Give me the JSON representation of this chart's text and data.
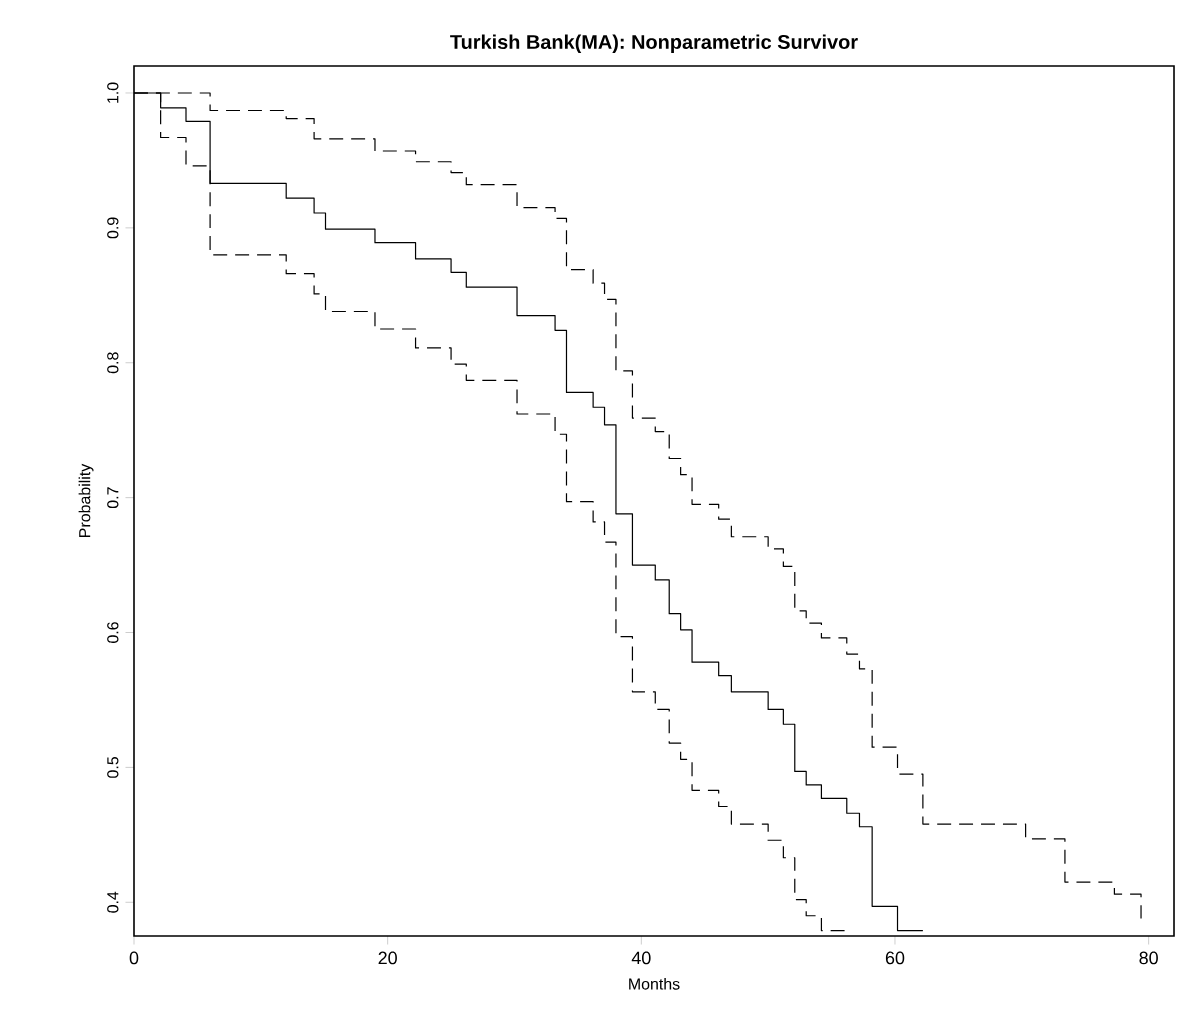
{
  "chart_data": {
    "type": "step",
    "title": "Turkish Bank(MA):  Nonparametric  Survivor",
    "xlabel": "Months",
    "ylabel": "Probability",
    "xlim": [
      0,
      82
    ],
    "ylim": [
      0.375,
      1.02
    ],
    "xticks": [
      0,
      20,
      40,
      60,
      80
    ],
    "yticks": [
      0.4,
      0.5,
      0.6,
      0.7,
      0.8,
      0.9,
      {
        "value": 1,
        "label": "1.0"
      }
    ],
    "series": [
      {
        "color": "#000000",
        "line_style": "solid",
        "x": [
          0,
          2.1,
          4.1,
          6.0,
          12.0,
          14.2,
          15.1,
          19.0,
          22.2,
          25.0,
          26.2,
          30.2,
          33.2,
          34.1,
          36.2,
          37.1,
          38.0,
          39.3,
          41.1,
          42.2,
          43.1,
          44.0,
          46.1,
          47.1,
          50.0,
          51.2,
          52.1,
          53.0,
          54.2,
          56.2,
          57.2,
          58.2,
          60.2,
          62.2
        ],
        "values": [
          1,
          0.989,
          0.979,
          0.933,
          0.922,
          0.911,
          0.899,
          0.889,
          0.877,
          0.867,
          0.856,
          0.835,
          0.824,
          0.778,
          0.767,
          0.754,
          0.688,
          0.65,
          0.639,
          0.614,
          0.602,
          0.578,
          0.568,
          0.556,
          0.543,
          0.532,
          0.497,
          0.487,
          0.477,
          0.466,
          0.456,
          0.397,
          0.379,
          0.379
        ]
      },
      {
        "color": "#000000",
        "line_style": "dashed",
        "x": [
          0,
          2.1,
          4.1,
          6.0,
          12.0,
          14.2,
          15.1,
          19.0,
          22.2,
          25.0,
          26.2,
          30.2,
          33.2,
          34.1,
          36.2,
          37.1,
          38.0,
          39.3,
          41.1,
          42.2,
          43.1,
          44.0,
          46.1,
          47.1,
          50.0,
          51.2,
          52.1,
          53.0,
          54.2,
          56.2
        ],
        "values": [
          1,
          0.967,
          0.946,
          0.88,
          0.866,
          0.851,
          0.838,
          0.825,
          0.811,
          0.799,
          0.787,
          0.762,
          0.747,
          0.697,
          0.682,
          0.667,
          0.597,
          0.556,
          0.543,
          0.518,
          0.506,
          0.483,
          0.471,
          0.458,
          0.446,
          0.433,
          0.402,
          0.39,
          0.379,
          0.379
        ]
      },
      {
        "color": "#000000",
        "line_style": "dashed",
        "x": [
          0,
          6.0,
          12.0,
          14.2,
          19.0,
          22.2,
          25.0,
          26.2,
          30.2,
          33.2,
          34.1,
          36.2,
          37.1,
          38.0,
          39.3,
          41.1,
          42.2,
          43.1,
          44.0,
          46.1,
          47.1,
          50.0,
          51.2,
          52.1,
          53.0,
          54.2,
          56.2,
          57.2,
          58.2,
          60.2,
          62.2,
          70.3,
          73.4,
          77.3,
          79.4
        ],
        "values": [
          1,
          0.987,
          0.981,
          0.966,
          0.957,
          0.949,
          0.941,
          0.932,
          0.915,
          0.907,
          0.869,
          0.859,
          0.847,
          0.794,
          0.759,
          0.749,
          0.729,
          0.717,
          0.695,
          0.684,
          0.671,
          0.662,
          0.649,
          0.616,
          0.607,
          0.596,
          0.584,
          0.573,
          0.515,
          0.495,
          0.458,
          0.447,
          0.415,
          0.406,
          0.388
        ]
      }
    ]
  }
}
